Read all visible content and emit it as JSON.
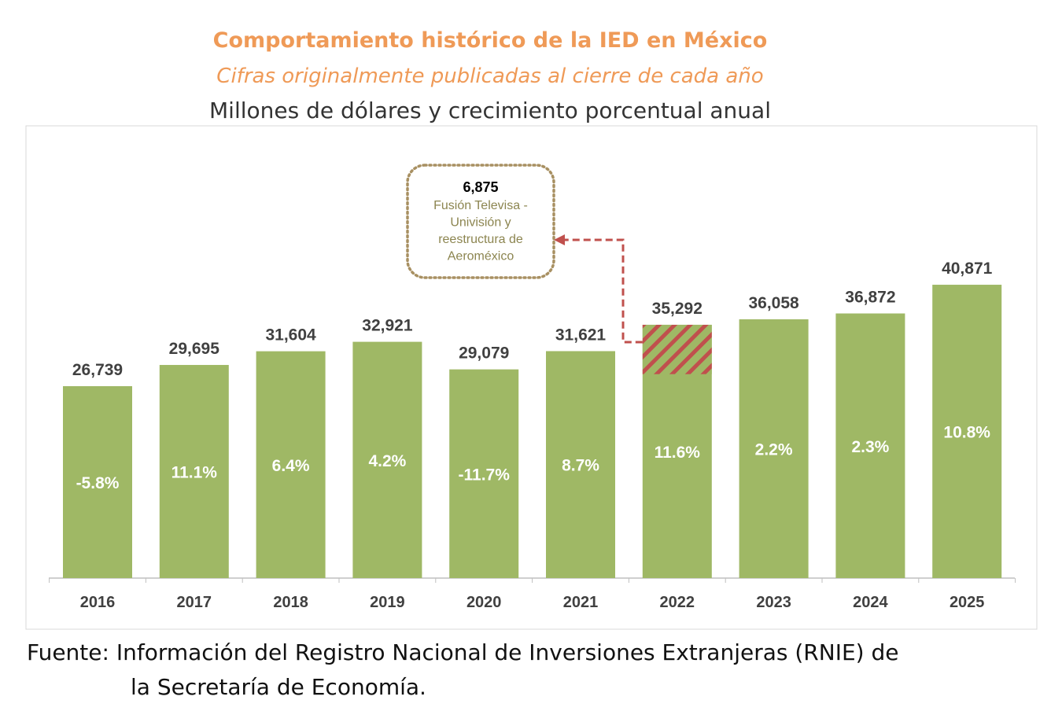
{
  "chart_data": {
    "type": "bar",
    "title": "Comportamiento histórico de la IED en México",
    "subtitle": "Cifras originalmente publicadas al cierre de cada año",
    "ylabel": "Millones de dólares y crecimiento porcentual anual",
    "xlabel": "",
    "categories": [
      "2016",
      "2017",
      "2018",
      "2019",
      "2020",
      "2021",
      "2022",
      "2023",
      "2024",
      "2025"
    ],
    "values": [
      26739,
      29695,
      31604,
      32921,
      29079,
      31621,
      35292,
      36058,
      36872,
      40871
    ],
    "value_labels": [
      "26,739",
      "29,695",
      "31,604",
      "32,921",
      "29,079",
      "31,621",
      "35,292",
      "36,058",
      "36,872",
      "40,871"
    ],
    "growth_labels": [
      "-5.8%",
      "11.1%",
      "6.4%",
      "4.2%",
      "-11.7%",
      "8.7%",
      "11.6%",
      "2.2%",
      "2.3%",
      "10.8%"
    ],
    "ylim": [
      0,
      45000
    ],
    "grid": false,
    "colors": {
      "bar": "#9fb865",
      "highlight": "#c0504d",
      "callout_border": "#a89062",
      "callout_text": "#8c8550",
      "title": "#ef9a57"
    },
    "annotation": {
      "category": "2022",
      "value": 6875,
      "value_label": "6,875",
      "text_lines": [
        "Fusión Televisa -",
        "Univisión  y",
        "reestructura  de",
        "Aeroméxico"
      ]
    }
  },
  "source": {
    "line1": "Fuente: Información del Registro Nacional de Inversiones Extranjeras (RNIE) de",
    "line2": "la Secretaría de Economía."
  }
}
